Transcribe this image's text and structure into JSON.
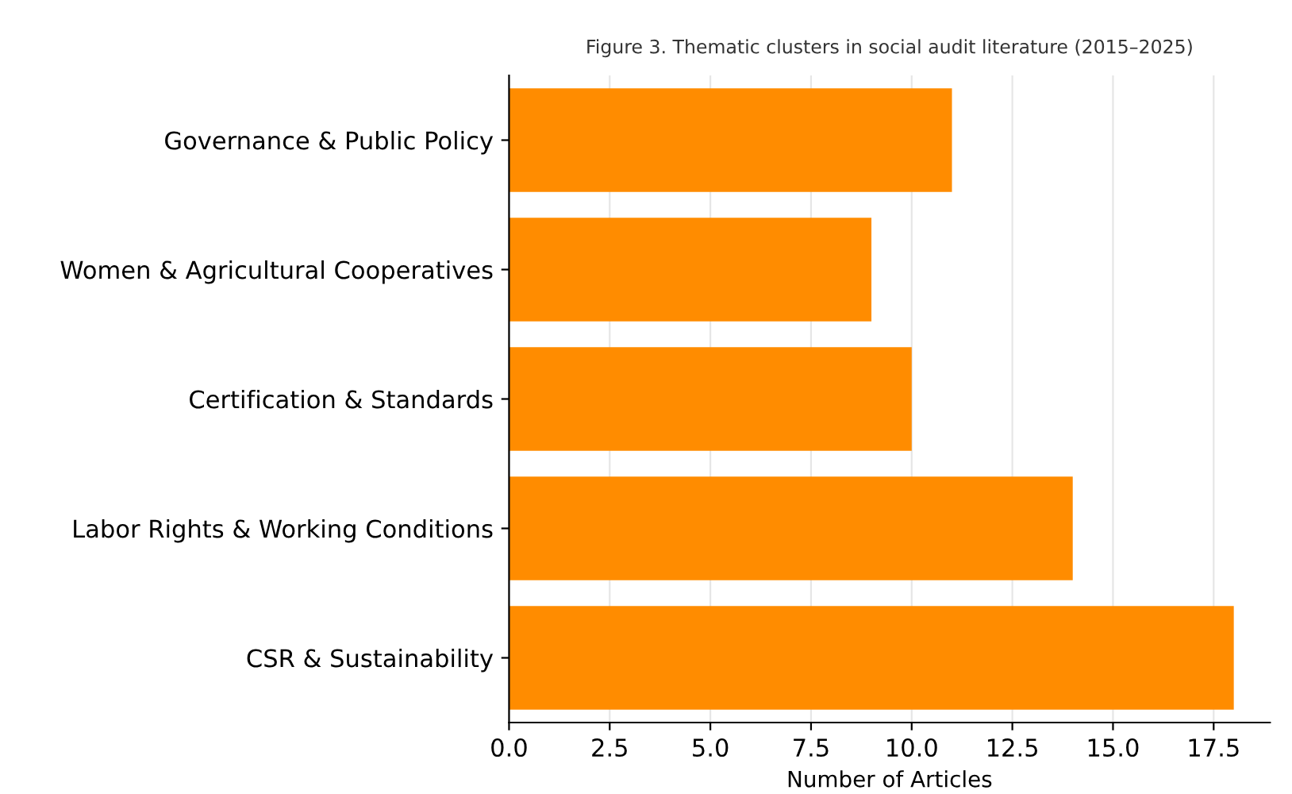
{
  "chart_data": {
    "type": "bar",
    "orientation": "horizontal",
    "title": "Figure 3. Thematic clusters in social audit literature (2015–2025)",
    "xlabel": "Number of Articles",
    "categories": [
      "Governance & Public Policy",
      "Women & Agricultural Cooperatives",
      "Certification & Standards",
      "Labor Rights & Working Conditions",
      "CSR & Sustainability"
    ],
    "values": [
      11,
      9,
      10,
      14,
      18
    ],
    "color": "#ff8c00",
    "xlim": [
      0,
      18.9
    ],
    "xticks": [
      {
        "value": 0,
        "label": "0.0"
      },
      2.5,
      {
        "value": 5,
        "label": "5.0"
      },
      7.5,
      {
        "value": 10,
        "label": "10.0"
      },
      12.5,
      {
        "value": 15,
        "label": "15.0"
      },
      17.5
    ],
    "grid": "x"
  }
}
